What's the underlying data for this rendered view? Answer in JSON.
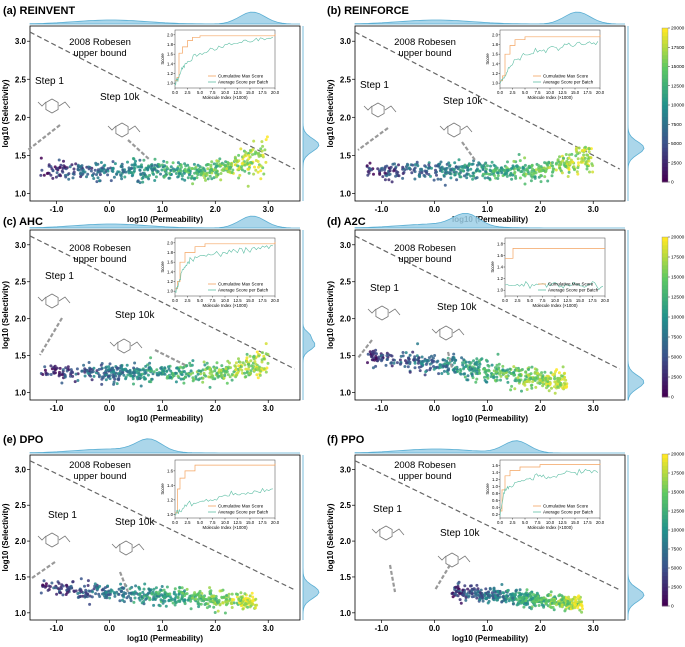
{
  "figure": {
    "colors": {
      "kde_fill": "#9ccfe6",
      "kde_line": "#5aaed3",
      "robeson_line": "#666666",
      "cumulative": "#f4a460",
      "average": "#5fbfa5",
      "leader": "#999999"
    },
    "colorbar": {
      "ticks": [
        "0",
        "2500",
        "5000",
        "7500",
        "10000",
        "12500",
        "15000",
        "17500",
        "20000"
      ],
      "min": 0,
      "max": 20000,
      "colors": [
        "#440154",
        "#3b528b",
        "#21918c",
        "#5ec962",
        "#fde725"
      ]
    },
    "common": {
      "robeson_label_line1": "2008 Robesen",
      "robeson_label_line2": "upper bound",
      "step1_label": "Step 1",
      "step10k_label": "Step 10k"
    },
    "inset_common": {
      "xlabel": "Molecule Index (×1000)",
      "ylabel": "Score",
      "legend_cumulative": "Cumulative Max Score",
      "legend_average": "Average Score per Batch",
      "xticks": [
        "0.0",
        "2.5",
        "5.0",
        "7.5",
        "10.0",
        "12.5",
        "15.0",
        "17.5",
        "20.0"
      ]
    }
  },
  "chart_data": [
    {
      "id": "a",
      "title": "(a) REINVENT",
      "type": "scatter",
      "xlabel": "log10 (Permeability)",
      "ylabel": "log10 (Selectivity)",
      "xlim": [
        -1.5,
        3.6
      ],
      "ylim": [
        0.9,
        3.2
      ],
      "xticks": [
        "-1.0",
        "0.0",
        "1.0",
        "2.0",
        "3.0"
      ],
      "yticks": [
        "1.0",
        "1.5",
        "2.0",
        "2.5",
        "3.0"
      ],
      "robeson_line": {
        "x": [
          -1.5,
          3.5
        ],
        "y": [
          3.12,
          1.32
        ]
      },
      "cloud": {
        "x_start": -1.3,
        "x_end": 3.0,
        "y_base": 1.3,
        "spread": 0.06,
        "rise_start": 2.0,
        "rise_height": 0.32
      },
      "inset": {
        "type": "line",
        "yticks": [
          "1.0",
          "1.2",
          "1.4",
          "1.6",
          "1.8",
          "2.0"
        ],
        "ylim": [
          0.9,
          2.1
        ],
        "cumulative": [
          [
            0,
            1.05
          ],
          [
            0.4,
            1.12
          ],
          [
            0.8,
            1.62
          ],
          [
            1.5,
            1.75
          ],
          [
            2.5,
            1.88
          ],
          [
            3.5,
            1.95
          ],
          [
            5,
            1.98
          ],
          [
            20,
            2.02
          ]
        ],
        "average": [
          [
            0,
            1.0
          ],
          [
            0.5,
            1.08
          ],
          [
            1,
            1.18
          ],
          [
            2,
            1.38
          ],
          [
            3,
            1.48
          ],
          [
            5,
            1.6
          ],
          [
            7.5,
            1.7
          ],
          [
            10,
            1.78
          ],
          [
            12.5,
            1.82
          ],
          [
            15,
            1.86
          ],
          [
            17.5,
            1.9
          ],
          [
            20,
            1.93
          ]
        ]
      }
    },
    {
      "id": "b",
      "title": "(b) REINFORCE",
      "type": "scatter",
      "xlabel": "log10 (Permeability)",
      "ylabel": "log10 (Selectivity)",
      "xlim": [
        -1.5,
        3.6
      ],
      "ylim": [
        0.9,
        3.2
      ],
      "xticks": [
        "-1.0",
        "0.0",
        "1.0",
        "2.0",
        "3.0"
      ],
      "yticks": [
        "1.0",
        "1.5",
        "2.0",
        "2.5",
        "3.0"
      ],
      "robeson_line": {
        "x": [
          -1.5,
          3.5
        ],
        "y": [
          3.12,
          1.32
        ]
      },
      "cloud": {
        "x_start": -1.3,
        "x_end": 3.0,
        "y_base": 1.3,
        "spread": 0.06,
        "rise_start": 2.0,
        "rise_height": 0.3
      },
      "inset": {
        "type": "line",
        "yticks": [
          "1.0",
          "1.2",
          "1.4",
          "1.6",
          "1.8",
          "2.0"
        ],
        "ylim": [
          0.9,
          2.1
        ],
        "cumulative": [
          [
            0,
            1.05
          ],
          [
            0.5,
            1.15
          ],
          [
            1,
            1.6
          ],
          [
            2,
            1.78
          ],
          [
            3,
            1.9
          ],
          [
            5,
            1.96
          ],
          [
            20,
            2.0
          ]
        ],
        "average": [
          [
            0,
            1.0
          ],
          [
            1,
            1.15
          ],
          [
            2,
            1.35
          ],
          [
            3,
            1.45
          ],
          [
            5,
            1.58
          ],
          [
            7.5,
            1.65
          ],
          [
            10,
            1.72
          ],
          [
            12.5,
            1.76
          ],
          [
            15,
            1.8
          ],
          [
            17.5,
            1.82
          ],
          [
            20,
            1.85
          ]
        ]
      }
    },
    {
      "id": "c",
      "title": "(c) AHC",
      "type": "scatter",
      "xlabel": "log10 (Permeability)",
      "ylabel": "log10 (Selectivity)",
      "xlim": [
        -1.5,
        3.6
      ],
      "ylim": [
        0.9,
        3.2
      ],
      "xticks": [
        "-1.0",
        "0.0",
        "1.0",
        "2.0",
        "3.0"
      ],
      "yticks": [
        "1.0",
        "1.5",
        "2.0",
        "2.5",
        "3.0"
      ],
      "robeson_line": {
        "x": [
          -1.5,
          3.5
        ],
        "y": [
          3.12,
          1.32
        ]
      },
      "cloud": {
        "x_start": -1.3,
        "x_end": 3.0,
        "y_base": 1.27,
        "spread": 0.06,
        "rise_start": 2.2,
        "rise_height": 0.28
      },
      "inset": {
        "type": "line",
        "yticks": [
          "1.0",
          "1.2",
          "1.4",
          "1.6",
          "1.8",
          "2.0"
        ],
        "ylim": [
          0.9,
          2.1
        ],
        "cumulative": [
          [
            0,
            1.05
          ],
          [
            0.5,
            1.2
          ],
          [
            1,
            1.6
          ],
          [
            2,
            1.8
          ],
          [
            4,
            1.92
          ],
          [
            6,
            1.98
          ],
          [
            20,
            2.02
          ]
        ],
        "average": [
          [
            0,
            1.0
          ],
          [
            0.6,
            1.1
          ],
          [
            1.2,
            1.35
          ],
          [
            2,
            1.55
          ],
          [
            3,
            1.62
          ],
          [
            5,
            1.72
          ],
          [
            7.5,
            1.8
          ],
          [
            10,
            1.78
          ],
          [
            12.5,
            1.85
          ],
          [
            15,
            1.88
          ],
          [
            17.5,
            1.9
          ],
          [
            20,
            1.93
          ]
        ]
      }
    },
    {
      "id": "d",
      "title": "(d) A2C",
      "type": "scatter",
      "xlabel": "log10 (Permeability)",
      "ylabel": "log10 (Selectivity)",
      "xlim": [
        -1.5,
        3.6
      ],
      "ylim": [
        0.9,
        3.2
      ],
      "xticks": [
        "-1.0",
        "0.0",
        "1.0",
        "2.0",
        "3.0"
      ],
      "yticks": [
        "1.0",
        "1.5",
        "2.0",
        "2.5",
        "3.0"
      ],
      "robeson_line": {
        "x": [
          -1.5,
          3.5
        ],
        "y": [
          3.12,
          1.32
        ]
      },
      "cloud": {
        "x_start": -1.3,
        "x_end": 2.5,
        "y_base_start": 1.5,
        "y_base_end": 1.15,
        "spread": 0.07,
        "rise_start": 9,
        "rise_height": 0
      },
      "inset": {
        "type": "line",
        "yticks": [
          "1.0",
          "1.2",
          "1.4",
          "1.6",
          "1.8"
        ],
        "ylim": [
          0.9,
          1.9
        ],
        "cumulative": [
          [
            0,
            1.55
          ],
          [
            1.5,
            1.55
          ],
          [
            1.6,
            1.72
          ],
          [
            20,
            1.72
          ]
        ],
        "average": [
          [
            0,
            1.08
          ],
          [
            2.5,
            1.1
          ],
          [
            5,
            1.08
          ],
          [
            7.5,
            1.1
          ],
          [
            10,
            1.09
          ],
          [
            12.5,
            1.1
          ],
          [
            15,
            1.08
          ],
          [
            17.5,
            1.1
          ],
          [
            20,
            1.09
          ]
        ]
      }
    },
    {
      "id": "e",
      "title": "(e) DPO",
      "type": "scatter",
      "xlabel": "log10 (Permeability)",
      "ylabel": "log10 (Selectivity)",
      "xlim": [
        -1.5,
        3.6
      ],
      "ylim": [
        0.9,
        3.2
      ],
      "xticks": [
        "-1.0",
        "0.0",
        "1.0",
        "2.0",
        "3.0"
      ],
      "yticks": [
        "1.0",
        "1.5",
        "2.0",
        "2.5",
        "3.0"
      ],
      "robeson_line": {
        "x": [
          -1.5,
          3.5
        ],
        "y": [
          3.12,
          1.32
        ]
      },
      "cloud": {
        "x_start": -1.3,
        "x_end": 2.8,
        "y_base_start": 1.35,
        "y_base_end": 1.15,
        "spread": 0.06,
        "rise_start": 9,
        "rise_height": 0
      },
      "inset": {
        "type": "line",
        "yticks": [
          "1.0",
          "1.2",
          "1.4",
          "1.6"
        ],
        "ylim": [
          0.95,
          1.75
        ],
        "cumulative": [
          [
            0,
            1.02
          ],
          [
            0.5,
            1.35
          ],
          [
            1,
            1.5
          ],
          [
            2,
            1.6
          ],
          [
            4,
            1.68
          ],
          [
            20,
            1.7
          ]
        ],
        "average": [
          [
            0,
            1.0
          ],
          [
            1,
            1.05
          ],
          [
            2.5,
            1.12
          ],
          [
            5,
            1.18
          ],
          [
            7.5,
            1.2
          ],
          [
            10,
            1.25
          ],
          [
            12.5,
            1.28
          ],
          [
            15,
            1.3
          ],
          [
            17.5,
            1.32
          ],
          [
            20,
            1.34
          ]
        ]
      }
    },
    {
      "id": "f",
      "title": "(f) PPO",
      "type": "scatter",
      "xlabel": "log10 (Permeability)",
      "ylabel": "log10 (Selectivity)",
      "xlim": [
        -1.5,
        3.6
      ],
      "ylim": [
        0.9,
        3.2
      ],
      "xticks": [
        "-1.0",
        "0.0",
        "1.0",
        "2.0",
        "3.0"
      ],
      "yticks": [
        "1.0",
        "1.5",
        "2.0",
        "2.5",
        "3.0"
      ],
      "robeson_line": {
        "x": [
          -1.5,
          3.5
        ],
        "y": [
          3.12,
          1.32
        ]
      },
      "cloud": {
        "x_start": 0.3,
        "x_end": 2.8,
        "y_base_start": 1.3,
        "y_base_end": 1.12,
        "spread": 0.05,
        "rise_start": 9,
        "rise_height": 0
      },
      "inset": {
        "type": "line",
        "yticks": [
          "0.2",
          "0.4",
          "0.6",
          "0.8",
          "1.0",
          "1.2",
          "1.4",
          "1.6"
        ],
        "ylim": [
          0.1,
          1.75
        ],
        "cumulative": [
          [
            0,
            0.3
          ],
          [
            0.4,
            0.9
          ],
          [
            1,
            1.3
          ],
          [
            2,
            1.45
          ],
          [
            4,
            1.55
          ],
          [
            8,
            1.62
          ],
          [
            20,
            1.65
          ]
        ],
        "average": [
          [
            0,
            0.2
          ],
          [
            0.5,
            0.6
          ],
          [
            1,
            0.9
          ],
          [
            2,
            1.05
          ],
          [
            4,
            1.15
          ],
          [
            6,
            1.2
          ],
          [
            8,
            1.3
          ],
          [
            10,
            1.25
          ],
          [
            12.5,
            1.35
          ],
          [
            15,
            1.4
          ],
          [
            17.5,
            1.45
          ],
          [
            20,
            1.4
          ]
        ]
      }
    }
  ]
}
